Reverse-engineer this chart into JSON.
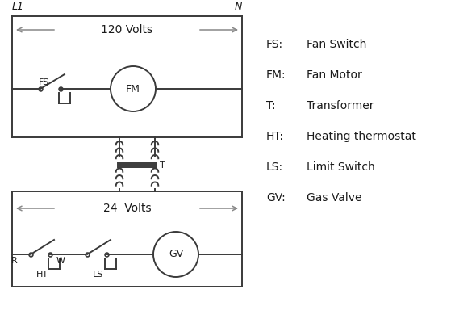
{
  "bg_color": "#ffffff",
  "line_color": "#3a3a3a",
  "arrow_color": "#888888",
  "text_color": "#1a1a1a",
  "legend_items": [
    [
      "FS:",
      "Fan Switch"
    ],
    [
      "FM:",
      "Fan Motor"
    ],
    [
      "T:",
      "Transformer"
    ],
    [
      "HT:",
      "Heating thermostat"
    ],
    [
      "LS:",
      "Limit Switch"
    ],
    [
      "GV:",
      "Gas Valve"
    ]
  ],
  "figsize": [
    5.9,
    4.0
  ],
  "dpi": 100
}
